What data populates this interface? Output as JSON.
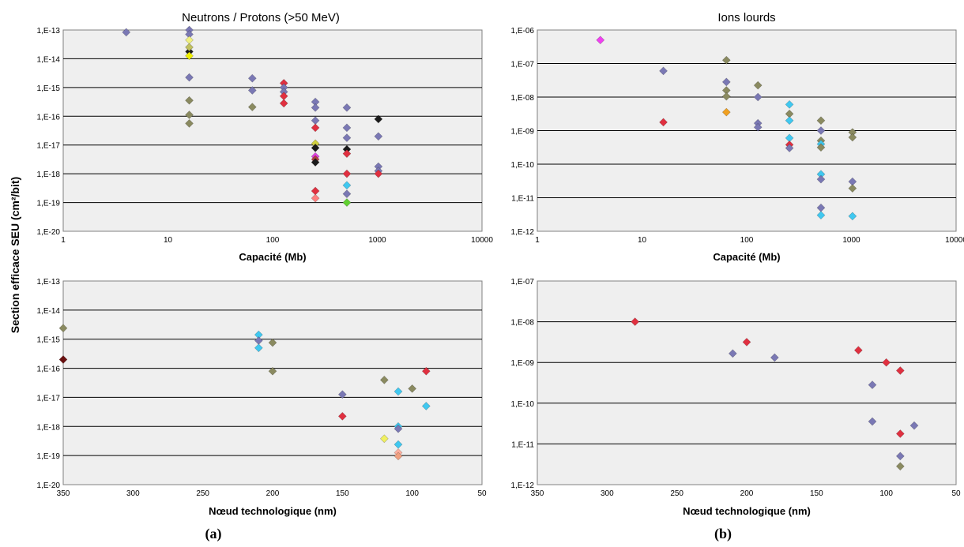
{
  "figure": {
    "ylabel": "Section efficace SEU (cm²/bit)",
    "caption_a": "(a)",
    "caption_b": "(b)"
  },
  "chart_data": [
    {
      "id": "a-top",
      "type": "scatter",
      "title": "Neutrons / Protons (>50 MeV)",
      "xlabel": "Capacité (Mb)",
      "x_scale": "log",
      "xlim": [
        1,
        10000
      ],
      "x_ticks": [
        "1",
        "10",
        "100",
        "1000",
        "10000"
      ],
      "y_scale": "log",
      "ylim": [
        -20,
        -13
      ],
      "y_ticks": [
        "1,E-20",
        "1,E-19",
        "1,E-18",
        "1,E-17",
        "1,E-16",
        "1,E-15",
        "1,E-14",
        "1,E-13"
      ],
      "grid": true,
      "points": [
        {
          "x": 4,
          "y": -13.08,
          "color": "#7a78b4"
        },
        {
          "x": 16,
          "y": -13.0,
          "color": "#7a78b4"
        },
        {
          "x": 16,
          "y": -13.15,
          "color": "#7a78b4"
        },
        {
          "x": 16,
          "y": -13.35,
          "color": "#f0f080"
        },
        {
          "x": 16,
          "y": -13.75,
          "color": "#1a1a1a"
        },
        {
          "x": 16,
          "y": -13.9,
          "color": "#f0f000"
        },
        {
          "x": 16,
          "y": -13.6,
          "color": "#c0c060"
        },
        {
          "x": 16,
          "y": -14.65,
          "color": "#7a78b4"
        },
        {
          "x": 16,
          "y": -15.45,
          "color": "#8a8a60"
        },
        {
          "x": 16,
          "y": -15.95,
          "color": "#8a8a60"
        },
        {
          "x": 16,
          "y": -16.25,
          "color": "#8a8a60"
        },
        {
          "x": 64,
          "y": -14.68,
          "color": "#7a78b4"
        },
        {
          "x": 64,
          "y": -15.1,
          "color": "#7a78b4"
        },
        {
          "x": 64,
          "y": -15.68,
          "color": "#8a8a60"
        },
        {
          "x": 128,
          "y": -14.85,
          "color": "#e03040"
        },
        {
          "x": 128,
          "y": -15.0,
          "color": "#7a78b4"
        },
        {
          "x": 128,
          "y": -15.15,
          "color": "#7a78b4"
        },
        {
          "x": 128,
          "y": -15.3,
          "color": "#e03040"
        },
        {
          "x": 128,
          "y": -15.55,
          "color": "#e03040"
        },
        {
          "x": 256,
          "y": -15.5,
          "color": "#7a78b4"
        },
        {
          "x": 256,
          "y": -15.7,
          "color": "#7a78b4"
        },
        {
          "x": 256,
          "y": -16.15,
          "color": "#7a78b4"
        },
        {
          "x": 256,
          "y": -16.4,
          "color": "#e03040"
        },
        {
          "x": 256,
          "y": -16.95,
          "color": "#d0d040"
        },
        {
          "x": 256,
          "y": -17.1,
          "color": "#1a1a1a"
        },
        {
          "x": 256,
          "y": -17.4,
          "color": "#e040e0"
        },
        {
          "x": 256,
          "y": -17.5,
          "color": "#b04040"
        },
        {
          "x": 256,
          "y": -17.6,
          "color": "#1a1a1a"
        },
        {
          "x": 256,
          "y": -18.6,
          "color": "#e03040"
        },
        {
          "x": 256,
          "y": -18.85,
          "color": "#ff8080"
        },
        {
          "x": 512,
          "y": -15.7,
          "color": "#7a78b4"
        },
        {
          "x": 512,
          "y": -16.4,
          "color": "#7a78b4"
        },
        {
          "x": 512,
          "y": -16.75,
          "color": "#7a78b4"
        },
        {
          "x": 512,
          "y": -17.15,
          "color": "#1a1a1a"
        },
        {
          "x": 512,
          "y": -17.3,
          "color": "#e03040"
        },
        {
          "x": 512,
          "y": -18.0,
          "color": "#e03040"
        },
        {
          "x": 512,
          "y": -18.4,
          "color": "#40c8f0"
        },
        {
          "x": 512,
          "y": -18.7,
          "color": "#7a78b4"
        },
        {
          "x": 512,
          "y": -19.0,
          "color": "#60d030"
        },
        {
          "x": 1024,
          "y": -16.1,
          "color": "#1a1a1a"
        },
        {
          "x": 1024,
          "y": -16.7,
          "color": "#7a78b4"
        },
        {
          "x": 1024,
          "y": -17.75,
          "color": "#7a78b4"
        },
        {
          "x": 1024,
          "y": -17.9,
          "color": "#7a78b4"
        },
        {
          "x": 1024,
          "y": -18.0,
          "color": "#e03040"
        }
      ]
    },
    {
      "id": "b-top",
      "type": "scatter",
      "title": "Ions lourds",
      "xlabel": "Capacité (Mb)",
      "x_scale": "log",
      "xlim": [
        1,
        10000
      ],
      "x_ticks": [
        "1",
        "10",
        "100",
        "1000",
        "10000"
      ],
      "y_scale": "log",
      "ylim": [
        -12,
        -6
      ],
      "y_ticks": [
        "1,E-12",
        "1,E-11",
        "1,E-10",
        "1,E-09",
        "1,E-08",
        "1,E-07",
        "1,E-06"
      ],
      "grid": true,
      "points": [
        {
          "x": 4,
          "y": -6.3,
          "color": "#f040f0"
        },
        {
          "x": 16,
          "y": -7.22,
          "color": "#7a78b4"
        },
        {
          "x": 16,
          "y": -8.75,
          "color": "#e03040"
        },
        {
          "x": 64,
          "y": -6.9,
          "color": "#8a8a60"
        },
        {
          "x": 64,
          "y": -7.55,
          "color": "#7a78b4"
        },
        {
          "x": 64,
          "y": -7.8,
          "color": "#8a8a60"
        },
        {
          "x": 64,
          "y": -7.98,
          "color": "#8a8a60"
        },
        {
          "x": 64,
          "y": -8.45,
          "color": "#f0a020"
        },
        {
          "x": 128,
          "y": -7.65,
          "color": "#8a8a60"
        },
        {
          "x": 128,
          "y": -8.0,
          "color": "#7a78b4"
        },
        {
          "x": 128,
          "y": -8.78,
          "color": "#7a78b4"
        },
        {
          "x": 128,
          "y": -8.9,
          "color": "#7a78b4"
        },
        {
          "x": 256,
          "y": -8.22,
          "color": "#40c8f0"
        },
        {
          "x": 256,
          "y": -8.5,
          "color": "#8a8a60"
        },
        {
          "x": 256,
          "y": -8.7,
          "color": "#40c8f0"
        },
        {
          "x": 256,
          "y": -9.22,
          "color": "#40c8f0"
        },
        {
          "x": 256,
          "y": -9.42,
          "color": "#e03040"
        },
        {
          "x": 256,
          "y": -9.52,
          "color": "#7a78b4"
        },
        {
          "x": 512,
          "y": -8.7,
          "color": "#8a8a60"
        },
        {
          "x": 512,
          "y": -9.0,
          "color": "#7a78b4"
        },
        {
          "x": 512,
          "y": -9.3,
          "color": "#8a8a60"
        },
        {
          "x": 512,
          "y": -9.4,
          "color": "#40c8f0"
        },
        {
          "x": 512,
          "y": -9.5,
          "color": "#8a8a60"
        },
        {
          "x": 512,
          "y": -10.3,
          "color": "#40c8f0"
        },
        {
          "x": 512,
          "y": -10.45,
          "color": "#7a78b4"
        },
        {
          "x": 512,
          "y": -11.3,
          "color": "#7a78b4"
        },
        {
          "x": 512,
          "y": -11.52,
          "color": "#40c8f0"
        },
        {
          "x": 1024,
          "y": -9.05,
          "color": "#8a8a60"
        },
        {
          "x": 1024,
          "y": -9.2,
          "color": "#8a8a60"
        },
        {
          "x": 1024,
          "y": -10.52,
          "color": "#7a78b4"
        },
        {
          "x": 1024,
          "y": -10.72,
          "color": "#8a8a60"
        },
        {
          "x": 1024,
          "y": -11.55,
          "color": "#40c8f0"
        }
      ]
    },
    {
      "id": "a-bottom",
      "type": "scatter",
      "title": "",
      "xlabel": "Nœud technologique (nm)",
      "x_scale": "linear",
      "xlim": [
        350,
        50
      ],
      "x_ticks": [
        "350",
        "300",
        "250",
        "200",
        "150",
        "100",
        "50"
      ],
      "y_scale": "log",
      "ylim": [
        -20,
        -13
      ],
      "y_ticks": [
        "1,E-20",
        "1,E-19",
        "1,E-18",
        "1,E-17",
        "1,E-16",
        "1,E-15",
        "1,E-14",
        "1,E-13"
      ],
      "grid": true,
      "points": [
        {
          "x": 350,
          "y": -14.62,
          "color": "#8a8a60"
        },
        {
          "x": 350,
          "y": -15.7,
          "color": "#6a1010"
        },
        {
          "x": 210,
          "y": -14.85,
          "color": "#40c8f0"
        },
        {
          "x": 210,
          "y": -15.05,
          "color": "#7a78b4"
        },
        {
          "x": 210,
          "y": -15.3,
          "color": "#40c8f0"
        },
        {
          "x": 200,
          "y": -15.12,
          "color": "#8a8a60"
        },
        {
          "x": 200,
          "y": -16.1,
          "color": "#8a8a60"
        },
        {
          "x": 150,
          "y": -16.9,
          "color": "#7a78b4"
        },
        {
          "x": 150,
          "y": -17.65,
          "color": "#e03040"
        },
        {
          "x": 120,
          "y": -16.4,
          "color": "#8a8a60"
        },
        {
          "x": 120,
          "y": -18.42,
          "color": "#f0f060"
        },
        {
          "x": 110,
          "y": -16.8,
          "color": "#40c8f0"
        },
        {
          "x": 110,
          "y": -18.0,
          "color": "#40c8f0"
        },
        {
          "x": 110,
          "y": -18.08,
          "color": "#7a78b4"
        },
        {
          "x": 110,
          "y": -18.62,
          "color": "#40c8f0"
        },
        {
          "x": 110,
          "y": -18.9,
          "color": "#ffb0a0"
        },
        {
          "x": 110,
          "y": -19.02,
          "color": "#f0a080"
        },
        {
          "x": 100,
          "y": -16.7,
          "color": "#8a8a60"
        },
        {
          "x": 90,
          "y": -16.1,
          "color": "#e03040"
        },
        {
          "x": 90,
          "y": -17.3,
          "color": "#40c8f0"
        }
      ]
    },
    {
      "id": "b-bottom",
      "type": "scatter",
      "title": "",
      "xlabel": "Nœud technologique (nm)",
      "x_scale": "linear",
      "xlim": [
        350,
        50
      ],
      "x_ticks": [
        "350",
        "300",
        "250",
        "200",
        "150",
        "100",
        "50"
      ],
      "y_scale": "log",
      "ylim": [
        -12,
        -7
      ],
      "y_ticks": [
        "1,E-12",
        "1,E-11",
        "1,E-10",
        "1,E-09",
        "1,E-08",
        "1,E-07"
      ],
      "grid": true,
      "points": [
        {
          "x": 280,
          "y": -8.0,
          "color": "#e03040"
        },
        {
          "x": 210,
          "y": -8.78,
          "color": "#7a78b4"
        },
        {
          "x": 200,
          "y": -8.5,
          "color": "#e03040"
        },
        {
          "x": 180,
          "y": -8.88,
          "color": "#7a78b4"
        },
        {
          "x": 120,
          "y": -8.7,
          "color": "#e03040"
        },
        {
          "x": 110,
          "y": -9.55,
          "color": "#7a78b4"
        },
        {
          "x": 110,
          "y": -10.45,
          "color": "#7a78b4"
        },
        {
          "x": 100,
          "y": -9.0,
          "color": "#e03040"
        },
        {
          "x": 90,
          "y": -9.2,
          "color": "#e03040"
        },
        {
          "x": 90,
          "y": -10.75,
          "color": "#e03040"
        },
        {
          "x": 90,
          "y": -11.3,
          "color": "#7a78b4"
        },
        {
          "x": 90,
          "y": -11.55,
          "color": "#8a8a60"
        },
        {
          "x": 80,
          "y": -10.55,
          "color": "#7a78b4"
        }
      ]
    }
  ]
}
